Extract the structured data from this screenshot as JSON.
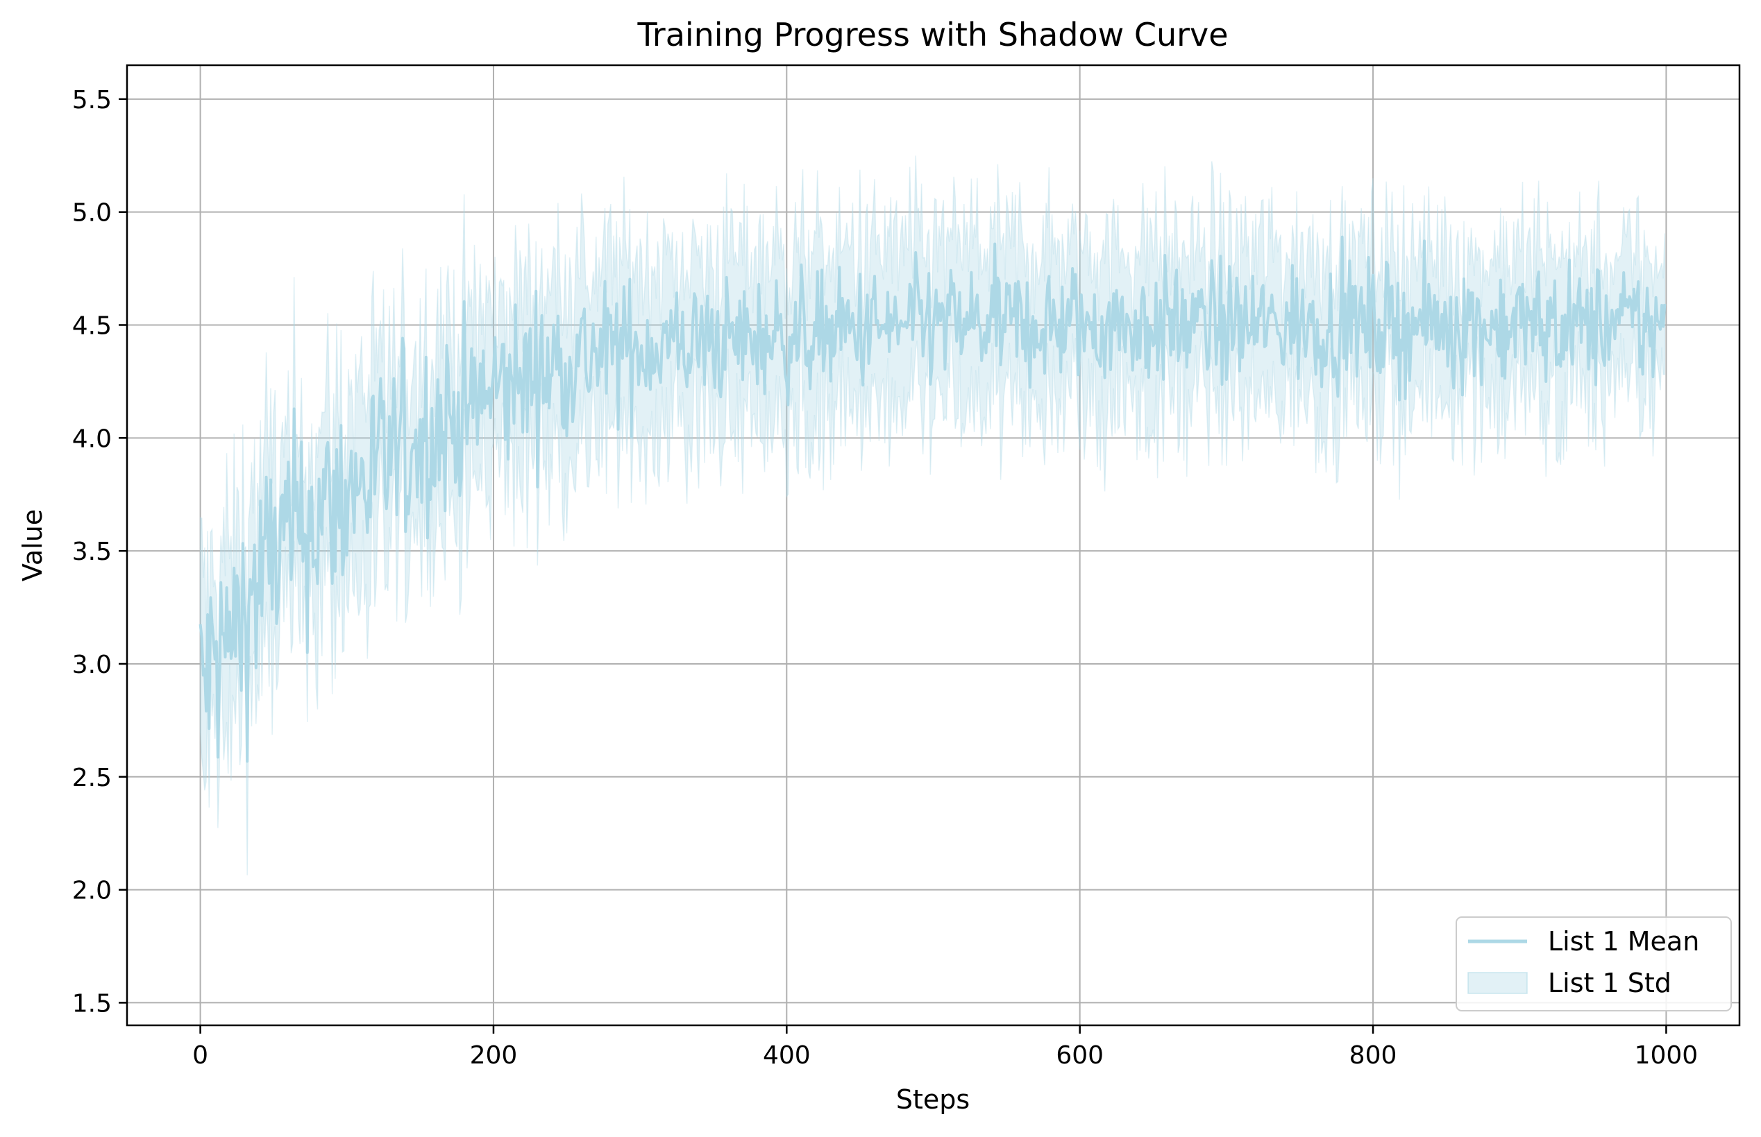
{
  "chart_data": {
    "type": "line",
    "title": "Training Progress with Shadow Curve",
    "xlabel": "Steps",
    "ylabel": "Value",
    "xlim": [
      -50,
      1050
    ],
    "ylim": [
      1.4,
      5.65
    ],
    "xticks": [
      0,
      200,
      400,
      600,
      800,
      1000
    ],
    "xtick_labels": [
      "0",
      "200",
      "400",
      "600",
      "800",
      "1000"
    ],
    "yticks": [
      1.5,
      2.0,
      2.5,
      3.0,
      3.5,
      4.0,
      4.5,
      5.0,
      5.5
    ],
    "ytick_labels": [
      "1.5",
      "2.0",
      "2.5",
      "3.0",
      "3.5",
      "4.0",
      "4.5",
      "5.0",
      "5.5"
    ],
    "grid": true,
    "legend_position": "lower-right",
    "colors": {
      "mean_line": "#add8e6",
      "std_band": "#add8e6",
      "grid": "#b0b0b0",
      "axes": "#000000"
    },
    "series": [
      {
        "name": "List 1 Mean",
        "kind": "line",
        "x_range": [
          0,
          999
        ],
        "trend_points": [
          [
            0,
            2.9
          ],
          [
            10,
            3.0
          ],
          [
            25,
            3.15
          ],
          [
            50,
            3.5
          ],
          [
            100,
            3.75
          ],
          [
            150,
            4.0
          ],
          [
            200,
            4.2
          ],
          [
            250,
            4.35
          ],
          [
            300,
            4.4
          ],
          [
            400,
            4.45
          ],
          [
            500,
            4.5
          ],
          [
            600,
            4.5
          ],
          [
            800,
            4.5
          ],
          [
            1000,
            4.5
          ]
        ],
        "noise_amplitude_start": 0.45,
        "noise_amplitude_end": 0.22
      },
      {
        "name": "List 1 Std",
        "kind": "band",
        "x_range": [
          0,
          999
        ],
        "half_width_start": 0.4,
        "half_width_end": 0.3
      }
    ],
    "legend": [
      "List 1 Mean",
      "List 1 Std"
    ]
  }
}
